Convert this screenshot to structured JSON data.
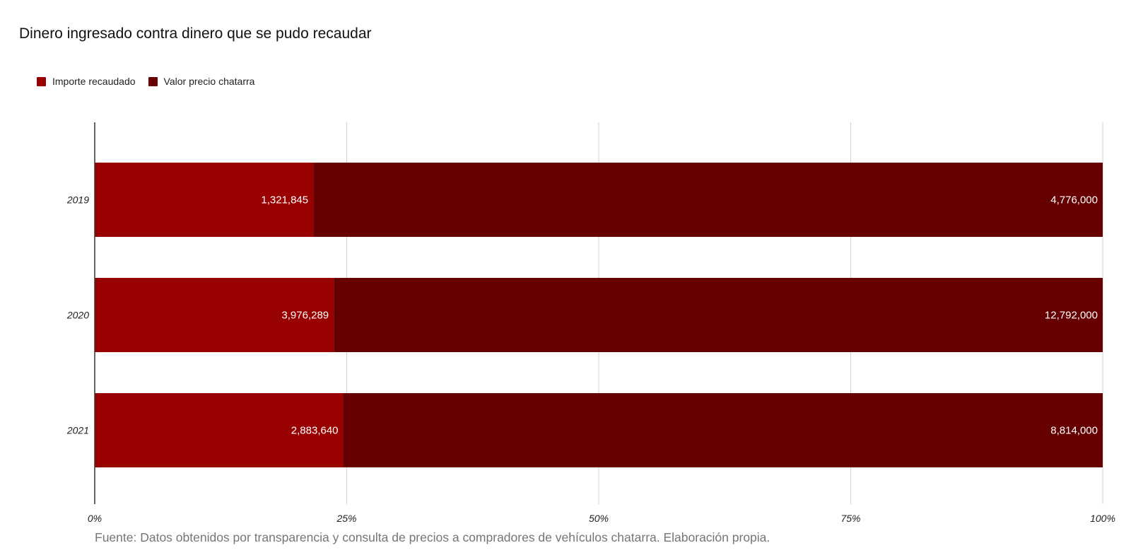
{
  "colors": {
    "importe": "#990000",
    "valor": "#660000",
    "grid": "#d0d0d0",
    "axis": "#333333"
  },
  "chart_data": {
    "type": "bar",
    "orientation": "horizontal",
    "stacking": "percent",
    "title": "Dinero ingresado contra dinero que se pudo recaudar",
    "categories": [
      "2019",
      "2020",
      "2021"
    ],
    "series": [
      {
        "name": "Importe recaudado",
        "color": "#990000",
        "values": [
          1321845,
          3976289,
          2883640
        ],
        "labels": [
          "1,321,845",
          "3,976,289",
          "2,883,640"
        ]
      },
      {
        "name": "Valor precio chatarra",
        "color": "#660000",
        "values": [
          4776000,
          12792000,
          8814000
        ],
        "labels": [
          "4,776,000",
          "12,792,000",
          "8,814,000"
        ]
      }
    ],
    "xticks": [
      "0%",
      "25%",
      "50%",
      "75%",
      "100%"
    ],
    "xlim": [
      0,
      100
    ],
    "grid": true,
    "legend_position": "top-left",
    "source": "Fuente: Datos obtenidos por transparencia y consulta de precios a compradores de vehículos chatarra. Elaboración propia."
  }
}
